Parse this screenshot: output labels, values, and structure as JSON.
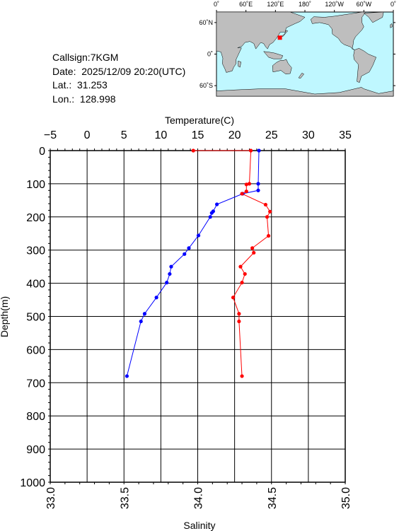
{
  "station": {
    "callsign": "Callsign:7KGM",
    "date": "Date:  2025/12/09 20:20(UTC)",
    "lat": "Lat.:  31.253",
    "lon": "Lon.:  128.998"
  },
  "map": {
    "lon_labels": [
      "0˚",
      "60˚E",
      "120˚E",
      "180˚",
      "120˚W",
      "60˚W",
      "0˚"
    ],
    "lat_labels": [
      "60˚N",
      "0˚",
      "60˚S"
    ],
    "ocean_color": "#bff7ff",
    "land_color": "#bebebe",
    "marker_color": "#ff0000",
    "marker": {
      "lon": 129.0,
      "lat": 31.25
    }
  },
  "chart_data": {
    "type": "line",
    "title": "",
    "ylabel": "Depth(m)",
    "ylim": [
      0,
      1000
    ],
    "y_ticks": [
      0,
      100,
      200,
      300,
      400,
      500,
      600,
      700,
      800,
      900,
      1000
    ],
    "top_axis": {
      "label": "Temperature(C)",
      "range": [
        -5,
        35
      ],
      "ticks": [
        -5,
        0,
        5,
        10,
        15,
        20,
        25,
        30,
        35
      ],
      "tick_labels": [
        "−5",
        "0",
        "5",
        "10",
        "15",
        "20",
        "25",
        "30",
        "35"
      ]
    },
    "bottom_axis": {
      "label": "Salinity",
      "range": [
        33.0,
        35.0
      ],
      "ticks": [
        33.0,
        33.5,
        34.0,
        34.5,
        35.0
      ],
      "tick_labels": [
        "33.0",
        "33.5",
        "34.0",
        "34.5",
        "35.0"
      ]
    },
    "grid": true,
    "series": [
      {
        "axis": "temperature",
        "color": "#0000ff",
        "points": [
          {
            "x": 23.3,
            "depth": 0
          },
          {
            "x": 23.2,
            "depth": 100
          },
          {
            "x": 23.2,
            "depth": 120
          },
          {
            "x": 21.1,
            "depth": 130
          },
          {
            "x": 17.6,
            "depth": 162
          },
          {
            "x": 17.1,
            "depth": 183
          },
          {
            "x": 16.9,
            "depth": 188
          },
          {
            "x": 16.7,
            "depth": 200
          },
          {
            "x": 15.1,
            "depth": 256
          },
          {
            "x": 13.8,
            "depth": 294
          },
          {
            "x": 13.2,
            "depth": 312
          },
          {
            "x": 11.4,
            "depth": 350
          },
          {
            "x": 11.2,
            "depth": 372
          },
          {
            "x": 10.8,
            "depth": 398
          },
          {
            "x": 9.4,
            "depth": 443
          },
          {
            "x": 7.8,
            "depth": 492
          },
          {
            "x": 7.3,
            "depth": 515
          },
          {
            "x": 5.4,
            "depth": 680
          }
        ]
      },
      {
        "axis": "salinity",
        "color": "#ff0000",
        "points": [
          {
            "x": 33.97,
            "depth": 0
          },
          {
            "x": 34.36,
            "depth": 0
          },
          {
            "x": 34.35,
            "depth": 100
          },
          {
            "x": 34.33,
            "depth": 102
          },
          {
            "x": 34.33,
            "depth": 123
          },
          {
            "x": 34.3,
            "depth": 130
          },
          {
            "x": 34.46,
            "depth": 163
          },
          {
            "x": 34.49,
            "depth": 184
          },
          {
            "x": 34.47,
            "depth": 200
          },
          {
            "x": 34.48,
            "depth": 257
          },
          {
            "x": 34.37,
            "depth": 294
          },
          {
            "x": 34.38,
            "depth": 308
          },
          {
            "x": 34.29,
            "depth": 350
          },
          {
            "x": 34.32,
            "depth": 372
          },
          {
            "x": 34.3,
            "depth": 398
          },
          {
            "x": 34.24,
            "depth": 443
          },
          {
            "x": 34.28,
            "depth": 492
          },
          {
            "x": 34.28,
            "depth": 515
          },
          {
            "x": 34.3,
            "depth": 680
          }
        ]
      }
    ]
  }
}
